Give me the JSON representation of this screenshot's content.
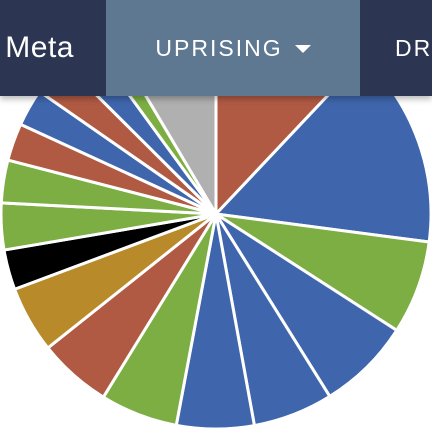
{
  "navbar": {
    "left_label": "Meta",
    "active_label": "UPRISING",
    "right_label": "DR",
    "active_icon": "caret-down-icon"
  },
  "colors": {
    "navbar": "#2c3652",
    "active_tab": "#5e7891",
    "red": "#b15a43",
    "blue": "#3f66ad",
    "green": "#7cae43",
    "gray": "#b0b0b0",
    "black": "#000000",
    "gold": "#b98a2a"
  },
  "chart_data": {
    "type": "pie",
    "slices": [
      {
        "value": 12.0,
        "color": "#b15a43"
      },
      {
        "value": 15.0,
        "color": "#3f66ad"
      },
      {
        "value": 7.0,
        "color": "#7cae43"
      },
      {
        "value": 7.0,
        "color": "#3f66ad"
      },
      {
        "value": 6.0,
        "color": "#3f66ad"
      },
      {
        "value": 5.8,
        "color": "#3f66ad"
      },
      {
        "value": 5.8,
        "color": "#7cae43"
      },
      {
        "value": 5.5,
        "color": "#b15a43"
      },
      {
        "value": 5.0,
        "color": "#b98a2a"
      },
      {
        "value": 3.0,
        "color": "#000000"
      },
      {
        "value": 3.5,
        "color": "#7cae43"
      },
      {
        "value": 3.2,
        "color": "#7cae43"
      },
      {
        "value": 2.8,
        "color": "#b15a43"
      },
      {
        "value": 2.8,
        "color": "#3f66ad"
      },
      {
        "value": 2.8,
        "color": "#b15a43"
      },
      {
        "value": 2.5,
        "color": "#3f66ad"
      },
      {
        "value": 1.5,
        "color": "#7cae43"
      },
      {
        "value": 8.5,
        "color": "#b0b0b0"
      }
    ]
  }
}
